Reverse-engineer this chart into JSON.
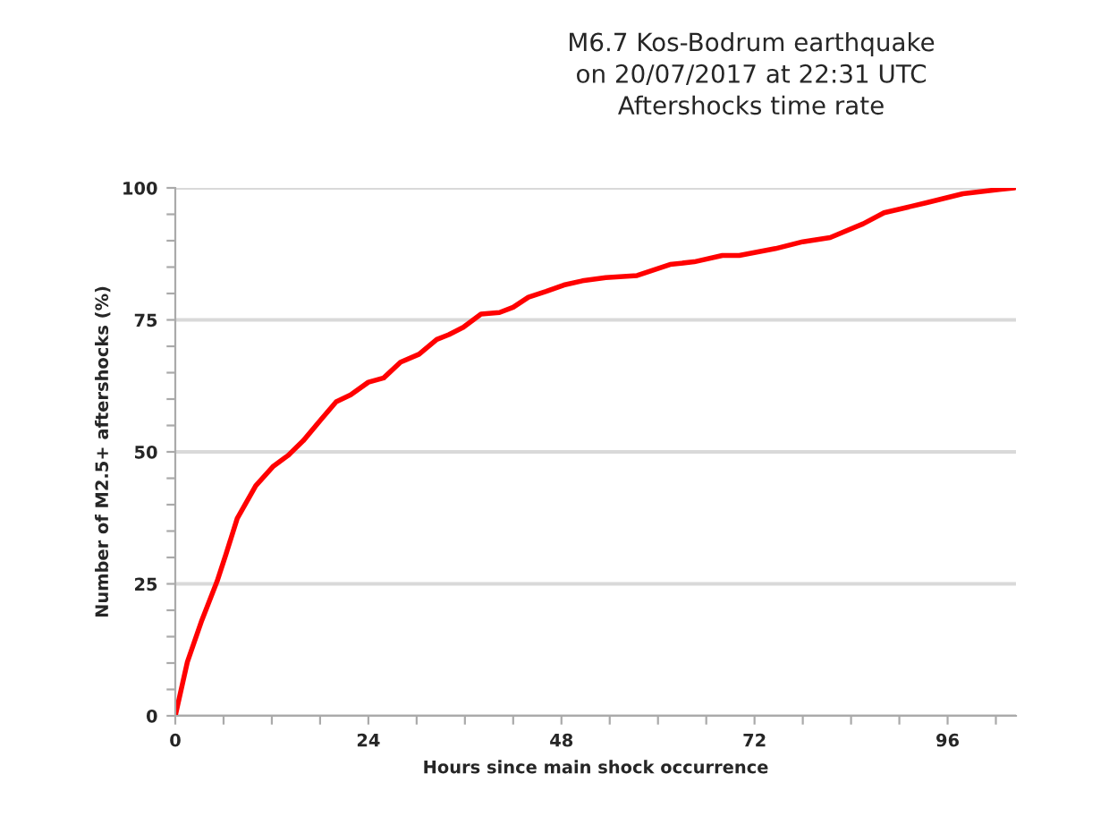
{
  "chart_data": {
    "type": "line",
    "title": "M6.7 Kos-Bodrum earthquake\non 20/07/2017 at 22:31 UTC\nAftershocks time rate",
    "xlabel": "Hours since main shock occurrence",
    "ylabel": "Number of M2.5+ aftershocks (%)",
    "x": [
      0,
      1.5,
      3.3,
      5.2,
      6.3,
      7.7,
      10,
      12.2,
      14,
      15.9,
      18.1,
      20,
      21.8,
      24,
      25.9,
      28,
      30.3,
      32.5,
      34,
      35.8,
      38,
      40.3,
      42,
      43.9,
      46.1,
      48.3,
      50.6,
      53.5,
      57.4,
      61.5,
      64.5,
      68,
      70.1,
      74.6,
      78,
      81.4,
      85.5,
      88.1,
      93.4,
      97.9,
      102.4,
      104.3
    ],
    "series": [
      {
        "color": "#ff0000",
        "values": [
          0,
          10.2,
          18.1,
          25.5,
          30.6,
          37.4,
          43.6,
          47.3,
          49.3,
          52.1,
          56.1,
          59.5,
          60.8,
          63.2,
          64,
          67,
          68.5,
          71.3,
          72.2,
          73.6,
          76.1,
          76.4,
          77.4,
          79.3,
          80.4,
          81.6,
          82.4,
          83,
          83.4,
          85.5,
          86,
          87.2,
          87.2,
          88.5,
          89.8,
          90.6,
          93.2,
          95.3,
          97.2,
          98.9,
          99.7,
          100
        ]
      }
    ],
    "xlim": [
      0,
      104.5
    ],
    "ylim": [
      0,
      100
    ],
    "xticks": [
      0,
      {
        "value": 6,
        "label": null
      },
      {
        "value": 12,
        "label": null
      },
      {
        "value": 18,
        "label": null
      },
      24,
      {
        "value": 30,
        "label": null
      },
      {
        "value": 36,
        "label": null
      },
      {
        "value": 42,
        "label": null
      },
      48,
      {
        "value": 54,
        "label": null
      },
      {
        "value": 60,
        "label": null
      },
      {
        "value": 66,
        "label": null
      },
      72,
      {
        "value": 78,
        "label": null
      },
      {
        "value": 84,
        "label": null
      },
      {
        "value": 90,
        "label": null
      },
      96,
      {
        "value": 102,
        "label": null
      }
    ],
    "yticks": [
      0,
      {
        "value": 5,
        "label": null
      },
      {
        "value": 10,
        "label": null
      },
      {
        "value": 15,
        "label": null
      },
      {
        "value": 20,
        "label": null
      },
      25,
      {
        "value": 30,
        "label": null
      },
      {
        "value": 35,
        "label": null
      },
      {
        "value": 40,
        "label": null
      },
      {
        "value": 45,
        "label": null
      },
      50,
      {
        "value": 55,
        "label": null
      },
      {
        "value": 60,
        "label": null
      },
      {
        "value": 65,
        "label": null
      },
      {
        "value": 70,
        "label": null
      },
      75,
      {
        "value": 80,
        "label": null
      },
      {
        "value": 85,
        "label": null
      },
      {
        "value": 90,
        "label": null
      },
      {
        "value": 95,
        "label": null
      },
      100
    ],
    "grid": "y",
    "marker": "none",
    "line_style": "solid"
  }
}
